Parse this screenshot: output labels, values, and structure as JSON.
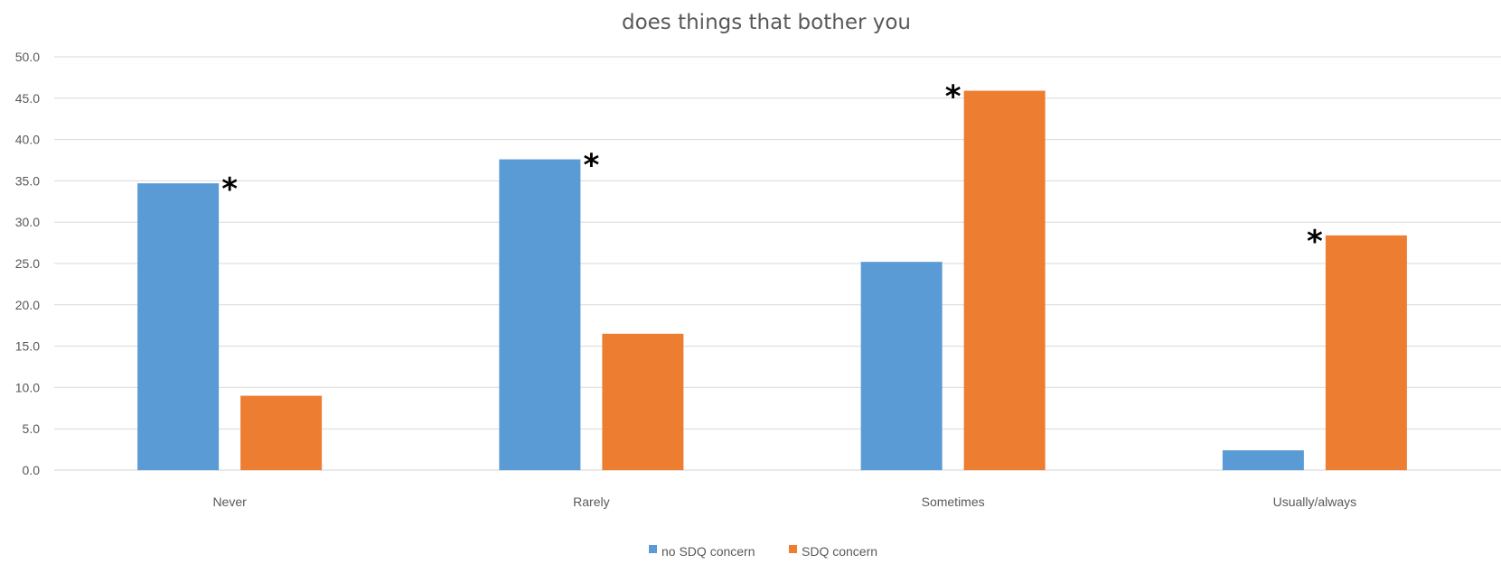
{
  "chart_data": {
    "type": "bar",
    "title": "does things that bother you",
    "categories": [
      "Never",
      "Rarely",
      "Sometimes",
      "Usually/always"
    ],
    "series": [
      {
        "name": "no SDQ concern",
        "color": "#5B9BD5",
        "values": [
          34.7,
          37.6,
          25.2,
          2.4
        ]
      },
      {
        "name": "SDQ concern",
        "color": "#ED7D31",
        "values": [
          9.0,
          16.5,
          45.9,
          28.4
        ]
      }
    ],
    "ylim": [
      0,
      50
    ],
    "yticks": [
      "0.0",
      "5.0",
      "10.0",
      "15.0",
      "20.0",
      "25.0",
      "30.0",
      "35.0",
      "40.0",
      "45.0",
      "50.0"
    ],
    "grid": true,
    "legend_position": "bottom",
    "annotations": [
      {
        "text": "*",
        "category": "Never"
      },
      {
        "text": "*",
        "category": "Rarely"
      },
      {
        "text": "*",
        "category": "Sometimes"
      },
      {
        "text": "*",
        "category": "Usually/always"
      }
    ]
  }
}
